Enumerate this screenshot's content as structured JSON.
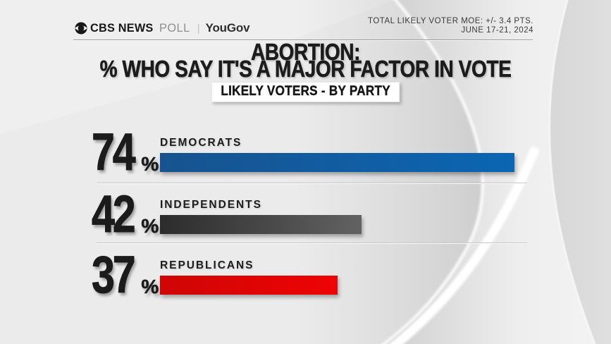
{
  "header": {
    "logo": {
      "cbs": "CBS NEWS",
      "poll": "POLL",
      "divider": "|",
      "partner": "YouGov"
    },
    "moe_line1": "TOTAL LIKELY VOTER MOE: +/- 3.4 PTS.",
    "moe_line2": "JUNE 17-21, 2024"
  },
  "title": {
    "line1": "ABORTION:",
    "line2": "% WHO SAY IT'S A MAJOR FACTOR IN VOTE"
  },
  "subtitle": "LIKELY VOTERS - BY PARTY",
  "chart_data": {
    "type": "bar",
    "orientation": "horizontal",
    "title": "ABORTION: % WHO SAY IT'S A MAJOR FACTOR IN VOTE",
    "subtitle": "LIKELY VOTERS - BY PARTY",
    "categories": [
      "DEMOCRATS",
      "INDEPENDENTS",
      "REPUBLICANS"
    ],
    "values": [
      74,
      42,
      37
    ],
    "value_labels": [
      "74%",
      "42%",
      "37%"
    ],
    "unit": "%",
    "xlim": [
      0,
      100
    ],
    "grid": false,
    "legend": false,
    "bar_colors": [
      "#0b66b3",
      "#4a4a4a",
      "#e30505"
    ]
  },
  "rows": [
    {
      "value": 74,
      "unit": "%",
      "label": "DEMOCRATS",
      "color_from": "#17538f",
      "color_to": "#0b66b3"
    },
    {
      "value": 42,
      "unit": "%",
      "label": "INDEPENDENTS",
      "color_from": "#2c2c2c",
      "color_to": "#626262"
    },
    {
      "value": 37,
      "unit": "%",
      "label": "REPUBLICANS",
      "color_from": "#cf0505",
      "color_to": "#ee0404"
    }
  ],
  "colors": {
    "background": "#ebebeb",
    "democrat_blue": "#0b66b3",
    "independent_gray": "#4a4a4a",
    "republican_red": "#e30505",
    "text": "#1c1c1c"
  }
}
